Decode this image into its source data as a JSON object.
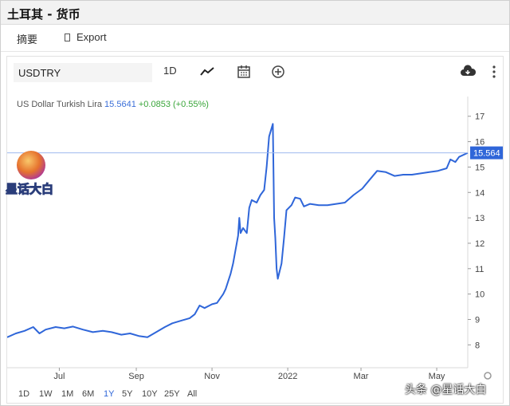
{
  "window": {
    "title": "土耳其 - 货币"
  },
  "tabs": [
    {
      "label": "摘要"
    },
    {
      "label": "Export"
    }
  ],
  "toolbar": {
    "symbol_value": "USDTRY",
    "interval_label": "1D",
    "icons": [
      "line-chart-icon",
      "calendar-icon",
      "add-circle-icon",
      "cloud-download-icon",
      "more-icon"
    ]
  },
  "legend": {
    "name": "US Dollar Turkish Lira",
    "price": "15.5641",
    "change": "+0.0853 (+0.55%)"
  },
  "price_tag": "15.564",
  "range_buttons": [
    {
      "label": "1D"
    },
    {
      "label": "1W"
    },
    {
      "label": "1M"
    },
    {
      "label": "6M"
    },
    {
      "label": "1Y",
      "active": true
    },
    {
      "label": "5Y"
    },
    {
      "label": "10Y"
    },
    {
      "label": "25Y"
    },
    {
      "label": "All"
    }
  ],
  "watermark": {
    "logo_text": "星话大白",
    "footer": "头条 @星话大白"
  },
  "colors": {
    "line": "#2f66d9",
    "positive": "#3aa63a",
    "price_tag_bg": "#2f66d9",
    "grid": "#eeeeee"
  },
  "chart_data": {
    "type": "line",
    "title": "",
    "xlabel": "",
    "ylabel": "",
    "x_ticks": [
      "Jul",
      "Sep",
      "Nov",
      "2022",
      "Mar",
      "May"
    ],
    "y_ticks": [
      8,
      9,
      10,
      11,
      12,
      13,
      14,
      15,
      16,
      17
    ],
    "ylim": [
      7.1,
      17.4
    ],
    "xlim": [
      "2021-05-20",
      "2022-05-26"
    ],
    "grid": false,
    "series": [
      {
        "name": "USDTRY",
        "points": [
          [
            "2021-05-20",
            8.3
          ],
          [
            "2021-05-27",
            8.45
          ],
          [
            "2021-06-03",
            8.55
          ],
          [
            "2021-06-10",
            8.7
          ],
          [
            "2021-06-15",
            8.45
          ],
          [
            "2021-06-20",
            8.6
          ],
          [
            "2021-06-28",
            8.7
          ],
          [
            "2021-07-05",
            8.65
          ],
          [
            "2021-07-12",
            8.72
          ],
          [
            "2021-07-20",
            8.6
          ],
          [
            "2021-07-28",
            8.5
          ],
          [
            "2021-08-05",
            8.55
          ],
          [
            "2021-08-12",
            8.5
          ],
          [
            "2021-08-20",
            8.4
          ],
          [
            "2021-08-27",
            8.45
          ],
          [
            "2021-09-03",
            8.35
          ],
          [
            "2021-09-10",
            8.3
          ],
          [
            "2021-09-17",
            8.5
          ],
          [
            "2021-09-24",
            8.7
          ],
          [
            "2021-09-30",
            8.85
          ],
          [
            "2021-10-07",
            8.95
          ],
          [
            "2021-10-14",
            9.05
          ],
          [
            "2021-10-18",
            9.2
          ],
          [
            "2021-10-22",
            9.55
          ],
          [
            "2021-10-26",
            9.45
          ],
          [
            "2021-11-01",
            9.6
          ],
          [
            "2021-11-05",
            9.65
          ],
          [
            "2021-11-10",
            10.0
          ],
          [
            "2021-11-12",
            10.2
          ],
          [
            "2021-11-16",
            10.8
          ],
          [
            "2021-11-18",
            11.2
          ],
          [
            "2021-11-22",
            12.3
          ],
          [
            "2021-11-23",
            13.0
          ],
          [
            "2021-11-24",
            12.4
          ],
          [
            "2021-11-26",
            12.6
          ],
          [
            "2021-11-29",
            12.4
          ],
          [
            "2021-12-01",
            13.4
          ],
          [
            "2021-12-03",
            13.7
          ],
          [
            "2021-12-07",
            13.6
          ],
          [
            "2021-12-10",
            13.9
          ],
          [
            "2021-12-13",
            14.1
          ],
          [
            "2021-12-15",
            15.0
          ],
          [
            "2021-12-17",
            16.2
          ],
          [
            "2021-12-20",
            16.7
          ],
          [
            "2021-12-21",
            13.0
          ],
          [
            "2021-12-22",
            12.2
          ],
          [
            "2021-12-23",
            11.0
          ],
          [
            "2021-12-24",
            10.6
          ],
          [
            "2021-12-27",
            11.2
          ],
          [
            "2021-12-29",
            12.2
          ],
          [
            "2021-12-31",
            13.3
          ],
          [
            "2022-01-04",
            13.5
          ],
          [
            "2022-01-07",
            13.8
          ],
          [
            "2022-01-11",
            13.75
          ],
          [
            "2022-01-14",
            13.45
          ],
          [
            "2022-01-19",
            13.55
          ],
          [
            "2022-01-26",
            13.5
          ],
          [
            "2022-02-02",
            13.5
          ],
          [
            "2022-02-09",
            13.55
          ],
          [
            "2022-02-16",
            13.6
          ],
          [
            "2022-02-23",
            13.9
          ],
          [
            "2022-03-02",
            14.15
          ],
          [
            "2022-03-08",
            14.5
          ],
          [
            "2022-03-14",
            14.85
          ],
          [
            "2022-03-21",
            14.8
          ],
          [
            "2022-03-28",
            14.65
          ],
          [
            "2022-04-04",
            14.7
          ],
          [
            "2022-04-11",
            14.7
          ],
          [
            "2022-04-18",
            14.75
          ],
          [
            "2022-04-25",
            14.8
          ],
          [
            "2022-05-02",
            14.85
          ],
          [
            "2022-05-09",
            14.95
          ],
          [
            "2022-05-12",
            15.3
          ],
          [
            "2022-05-16",
            15.2
          ],
          [
            "2022-05-19",
            15.4
          ],
          [
            "2022-05-26",
            15.56
          ]
        ]
      }
    ]
  }
}
